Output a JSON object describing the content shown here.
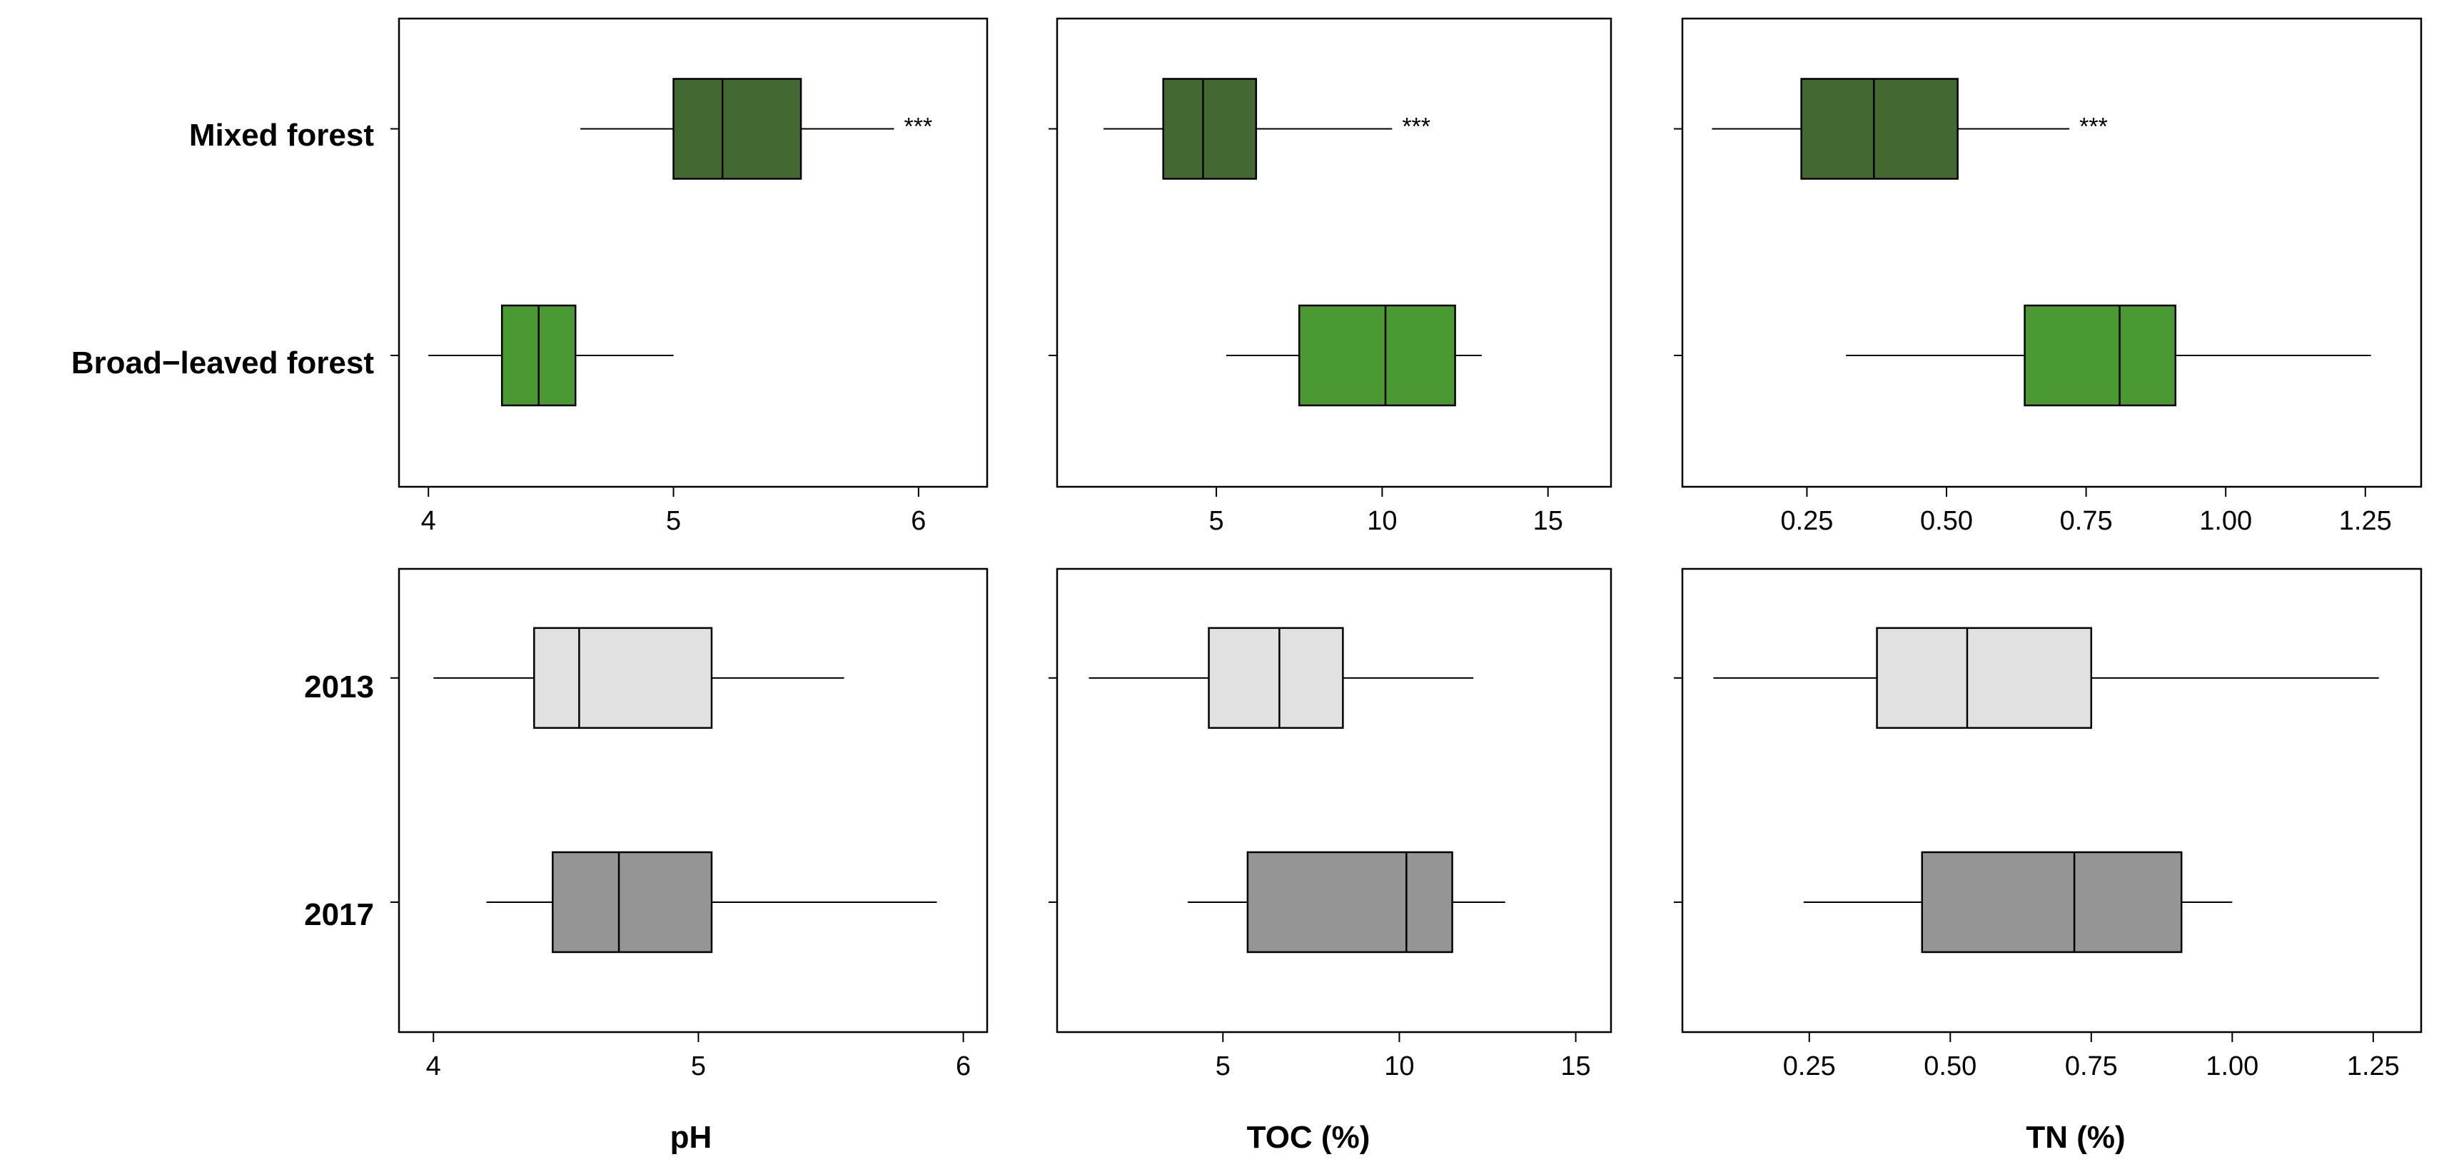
{
  "chart_data": [
    {
      "type": "boxplot",
      "row": 0,
      "col": 0,
      "xlim": [
        3.88,
        6.28
      ],
      "ticks": [
        4,
        5,
        6
      ],
      "tick_labels": [
        "4",
        "5",
        "6"
      ],
      "categories": [
        "Mixed forest",
        "Broad−leaved forest"
      ],
      "boxes": [
        {
          "category": "Mixed forest",
          "whisker_low": 4.62,
          "q1": 5.0,
          "median": 5.2,
          "q3": 5.52,
          "whisker_high": 5.9,
          "color": "#436832",
          "significance": "***"
        },
        {
          "category": "Broad−leaved forest",
          "whisker_low": 4.0,
          "q1": 4.3,
          "median": 4.45,
          "q3": 4.6,
          "whisker_high": 5.0,
          "color": "#4b9932",
          "significance": ""
        }
      ]
    },
    {
      "type": "boxplot",
      "row": 0,
      "col": 1,
      "xlim": [
        0.2,
        16.9
      ],
      "ticks": [
        5,
        10,
        15
      ],
      "tick_labels": [
        "5",
        "10",
        "15"
      ],
      "categories": [
        "Mixed forest",
        "Broad−leaved forest"
      ],
      "boxes": [
        {
          "category": "Mixed forest",
          "whisker_low": 1.6,
          "q1": 3.4,
          "median": 4.6,
          "q3": 6.2,
          "whisker_high": 10.3,
          "color": "#436832",
          "significance": "***"
        },
        {
          "category": "Broad−leaved forest",
          "whisker_low": 5.3,
          "q1": 7.5,
          "median": 10.1,
          "q3": 12.2,
          "whisker_high": 13.0,
          "color": "#4b9932",
          "significance": ""
        }
      ]
    },
    {
      "type": "boxplot",
      "row": 0,
      "col": 2,
      "xlim": [
        0.027,
        1.35
      ],
      "ticks": [
        0.25,
        0.5,
        0.75,
        1.0,
        1.25
      ],
      "tick_labels": [
        "0.25",
        "0.50",
        "0.75",
        "1.00",
        "1.25"
      ],
      "categories": [
        "Mixed forest",
        "Broad−leaved forest"
      ],
      "boxes": [
        {
          "category": "Mixed forest",
          "whisker_low": 0.08,
          "q1": 0.24,
          "median": 0.37,
          "q3": 0.52,
          "whisker_high": 0.72,
          "color": "#436832",
          "significance": "***"
        },
        {
          "category": "Broad−leaved forest",
          "whisker_low": 0.32,
          "q1": 0.64,
          "median": 0.81,
          "q3": 0.91,
          "whisker_high": 1.26,
          "color": "#4b9932",
          "significance": ""
        }
      ]
    },
    {
      "type": "boxplot",
      "row": 1,
      "col": 0,
      "xlim": [
        3.87,
        6.09
      ],
      "ticks": [
        4,
        5,
        6
      ],
      "tick_labels": [
        "4",
        "5",
        "6"
      ],
      "categories": [
        "2013",
        "2017"
      ],
      "boxes": [
        {
          "category": "2013",
          "whisker_low": 4.0,
          "q1": 4.38,
          "median": 4.55,
          "q3": 5.05,
          "whisker_high": 5.55,
          "color": "#e1e1e1",
          "significance": ""
        },
        {
          "category": "2017",
          "whisker_low": 4.2,
          "q1": 4.45,
          "median": 4.7,
          "q3": 5.05,
          "whisker_high": 5.9,
          "color": "#959595",
          "significance": ""
        }
      ]
    },
    {
      "type": "boxplot",
      "row": 1,
      "col": 1,
      "xlim": [
        0.3,
        16.0
      ],
      "ticks": [
        5,
        10,
        15
      ],
      "tick_labels": [
        "5",
        "10",
        "15"
      ],
      "categories": [
        "2013",
        "2017"
      ],
      "boxes": [
        {
          "category": "2013",
          "whisker_low": 1.2,
          "q1": 4.6,
          "median": 6.6,
          "q3": 8.4,
          "whisker_high": 12.1,
          "color": "#e1e1e1",
          "significance": ""
        },
        {
          "category": "2017",
          "whisker_low": 4.0,
          "q1": 5.7,
          "median": 10.2,
          "q3": 11.5,
          "whisker_high": 13.0,
          "color": "#959595",
          "significance": ""
        }
      ]
    },
    {
      "type": "boxplot",
      "row": 1,
      "col": 2,
      "xlim": [
        0.025,
        1.335
      ],
      "ticks": [
        0.25,
        0.5,
        0.75,
        1.0,
        1.25
      ],
      "tick_labels": [
        "0.25",
        "0.50",
        "0.75",
        "1.00",
        "1.25"
      ],
      "categories": [
        "2013",
        "2017"
      ],
      "boxes": [
        {
          "category": "2013",
          "whisker_low": 0.08,
          "q1": 0.37,
          "median": 0.53,
          "q3": 0.75,
          "whisker_high": 1.26,
          "color": "#e1e1e1",
          "significance": ""
        },
        {
          "category": "2017",
          "whisker_low": 0.24,
          "q1": 0.45,
          "median": 0.72,
          "q3": 0.91,
          "whisker_high": 1.0,
          "color": "#959595",
          "significance": ""
        }
      ]
    }
  ],
  "row_labels": [
    [
      "Mixed forest",
      "Broad−leaved forest"
    ],
    [
      "2013",
      "2017"
    ]
  ],
  "x_titles": [
    "pH",
    "TOC (%)",
    "TN (%)"
  ]
}
